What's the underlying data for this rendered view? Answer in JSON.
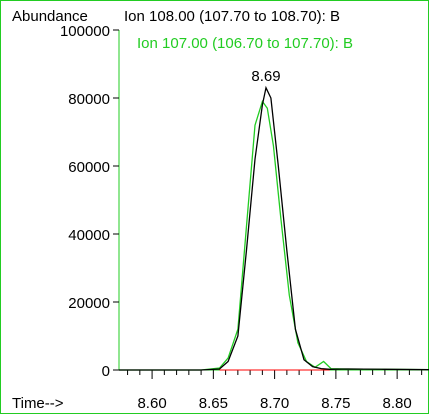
{
  "chart_data": {
    "type": "line",
    "ylabel": "Abundance",
    "xlabel": "Time-->",
    "xlim": [
      8.573,
      8.826
    ],
    "ylim": [
      0,
      100000
    ],
    "y_ticks": [
      0,
      20000,
      40000,
      60000,
      80000,
      100000
    ],
    "y_tick_labels": [
      "0",
      "20000",
      "40000",
      "60000",
      "80000",
      "100000"
    ],
    "x_ticks": [
      8.6,
      8.65,
      8.7,
      8.75,
      8.8
    ],
    "x_tick_labels": [
      "8.60",
      "8.65",
      "8.70",
      "8.75",
      "8.80"
    ],
    "peak_annotation": {
      "label": "8.69",
      "x": 8.693,
      "y": 83000
    },
    "series": [
      {
        "name": "Ion 108.00 (107.70 to 108.70): B",
        "color": "#000000",
        "x": [
          8.573,
          8.6,
          8.64,
          8.655,
          8.662,
          8.67,
          8.677,
          8.684,
          8.69,
          8.693,
          8.697,
          8.703,
          8.71,
          8.717,
          8.724,
          8.731,
          8.738,
          8.745,
          8.76,
          8.79,
          8.826
        ],
        "y": [
          0,
          0,
          0,
          300,
          2500,
          10000,
          35000,
          62000,
          78000,
          83000,
          80000,
          60000,
          35000,
          12000,
          3000,
          1000,
          400,
          200,
          300,
          200,
          100
        ]
      },
      {
        "name": "Ion 107.00 (106.70 to 107.70): B",
        "color": "#22cc22",
        "x": [
          8.573,
          8.6,
          8.64,
          8.655,
          8.662,
          8.67,
          8.677,
          8.684,
          8.69,
          8.694,
          8.699,
          8.705,
          8.712,
          8.719,
          8.726,
          8.733,
          8.74,
          8.746,
          8.76,
          8.79,
          8.826
        ],
        "y": [
          0,
          0,
          0,
          600,
          3500,
          12000,
          42000,
          72000,
          79000,
          77000,
          66000,
          45000,
          22000,
          8000,
          2500,
          800,
          2500,
          400,
          300,
          200,
          100
        ]
      }
    ],
    "baseline": {
      "color": "#ff0000",
      "x": [
        8.655,
        8.745
      ],
      "y": [
        0,
        0
      ]
    }
  }
}
